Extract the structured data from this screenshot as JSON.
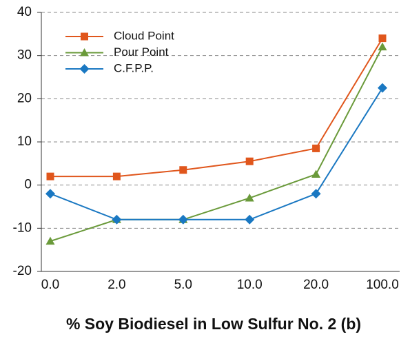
{
  "chart_data": {
    "type": "line",
    "xlabel": "% Soy Biodiesel in Low Sulfur No. 2 (b)",
    "categories": [
      "0.0",
      "2.0",
      "5.0",
      "10.0",
      "20.0",
      "100.0"
    ],
    "series": [
      {
        "name": "Cloud Point",
        "color": "#e0561c",
        "marker": "square",
        "values": [
          2,
          2,
          3.5,
          5.5,
          8.5,
          34
        ]
      },
      {
        "name": "Pour Point",
        "color": "#6a9a3a",
        "marker": "triangle",
        "values": [
          -13,
          -8,
          -8,
          -3,
          2.5,
          32
        ]
      },
      {
        "name": "C.F.P.P.",
        "color": "#1a78c2",
        "marker": "diamond",
        "values": [
          -2,
          -8,
          -8,
          -8,
          -2,
          22.5
        ]
      }
    ],
    "ylim": [
      -20,
      40
    ],
    "yticks": [
      -20,
      -10,
      0,
      10,
      20,
      30,
      40
    ],
    "grid": true,
    "legend": "upper left"
  }
}
